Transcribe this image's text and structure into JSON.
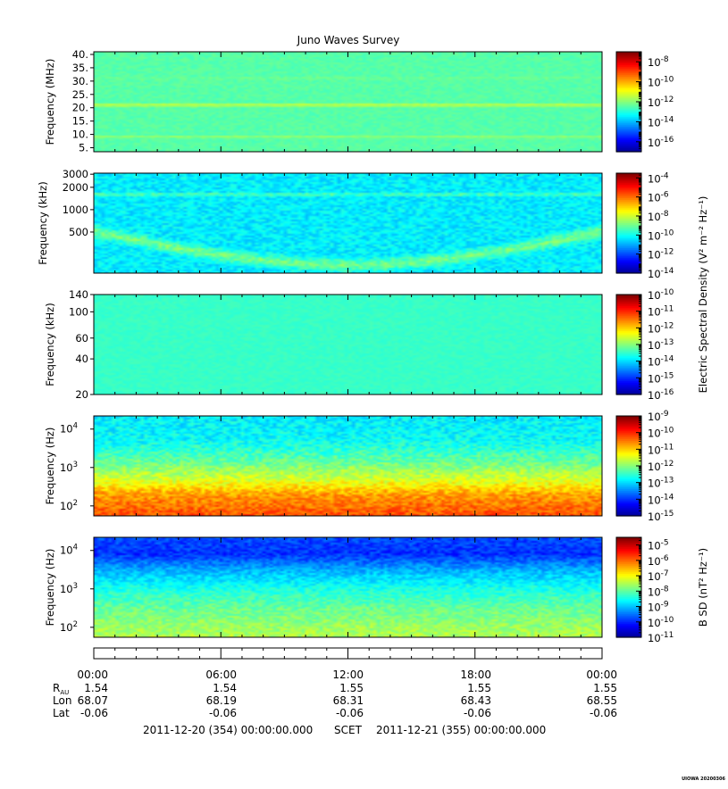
{
  "title": "Juno Waves Survey",
  "footer_id": "UIOWA 20200306",
  "colors": {
    "jet": [
      "#00008f",
      "#0000ff",
      "#0080ff",
      "#00ffff",
      "#80ff80",
      "#ffff00",
      "#ff8000",
      "#ff0000",
      "#800000"
    ]
  },
  "chart_data": [
    {
      "type": "heatmap",
      "name": "hfr-high",
      "ylabel": "Frequency (MHz)",
      "y_scale": "linear",
      "ylim": [
        3.5,
        41
      ],
      "yticks": [
        {
          "v": 5,
          "label": "5."
        },
        {
          "v": 10,
          "label": "10."
        },
        {
          "v": 15,
          "label": "15."
        },
        {
          "v": 20,
          "label": "20."
        },
        {
          "v": 25,
          "label": "25."
        },
        {
          "v": 30,
          "label": "30."
        },
        {
          "v": 35,
          "label": "35."
        },
        {
          "v": 40,
          "label": "40."
        }
      ],
      "colorbar": {
        "label": "",
        "min_exp": -17,
        "max_exp": -7,
        "ticks": [
          {
            "base": "10",
            "exp": "-8"
          },
          {
            "base": "10",
            "exp": "-10"
          },
          {
            "base": "10",
            "exp": "-12"
          },
          {
            "base": "10",
            "exp": "-14"
          },
          {
            "base": "10",
            "exp": "-16"
          }
        ]
      },
      "background_level": 0.46,
      "noise_amplitude": 0.02,
      "features": [
        {
          "kind": "band",
          "y": 21,
          "width": 0.9,
          "level": 0.58
        },
        {
          "kind": "band",
          "y": 9,
          "width": 0.6,
          "level": 0.54
        },
        {
          "kind": "band",
          "y": 31,
          "width": 0.5,
          "level": 0.5
        }
      ]
    },
    {
      "type": "heatmap",
      "name": "hfr-low",
      "ylabel": "Frequency (kHz)",
      "y_scale": "log",
      "ylim": [
        140,
        3100
      ],
      "yticks": [
        {
          "v": 500,
          "label": "500"
        },
        {
          "v": 1000,
          "label": "1000"
        },
        {
          "v": 2000,
          "label": "2000"
        },
        {
          "v": 3000,
          "label": "3000"
        }
      ],
      "colorbar": {
        "label": "",
        "min_exp": -14,
        "max_exp": -3.5,
        "ticks": [
          {
            "base": "10",
            "exp": "-4"
          },
          {
            "base": "10",
            "exp": "-6"
          },
          {
            "base": "10",
            "exp": "-8"
          },
          {
            "base": "10",
            "exp": "-10"
          },
          {
            "base": "10",
            "exp": "-12"
          },
          {
            "base": "10",
            "exp": "-14"
          }
        ]
      },
      "background_level": 0.36,
      "noise_amplitude": 0.05,
      "features": [
        {
          "kind": "band",
          "y": 1600,
          "width": 0.03,
          "level": 0.47
        },
        {
          "kind": "curve",
          "y_at_ends": 500,
          "y_at_mid": 180,
          "width": 0.12,
          "level": 0.5
        }
      ]
    },
    {
      "type": "heatmap",
      "name": "lfr-high",
      "ylabel": "Frequency (kHz)",
      "y_scale": "log",
      "ylim": [
        20,
        140
      ],
      "yticks": [
        {
          "v": 20,
          "label": "20"
        },
        {
          "v": 40,
          "label": "40"
        },
        {
          "v": 60,
          "label": "60"
        },
        {
          "v": 100,
          "label": "100"
        },
        {
          "v": 140,
          "label": "140"
        }
      ],
      "colorbar": {
        "label": "Electric Spectral Density (V² m⁻² Hz⁻¹)",
        "min_exp": -16,
        "max_exp": -10,
        "ticks": [
          {
            "base": "10",
            "exp": "-10"
          },
          {
            "base": "10",
            "exp": "-11"
          },
          {
            "base": "10",
            "exp": "-12"
          },
          {
            "base": "10",
            "exp": "-13"
          },
          {
            "base": "10",
            "exp": "-14"
          },
          {
            "base": "10",
            "exp": "-15"
          },
          {
            "base": "10",
            "exp": "-16"
          }
        ]
      },
      "background_level": 0.43,
      "noise_amplitude": 0.015,
      "features": []
    },
    {
      "type": "heatmap",
      "name": "lfr-low",
      "ylabel": "Frequency (Hz)",
      "y_scale": "log",
      "ylim": [
        55,
        22000
      ],
      "yticks": [
        {
          "v": 100,
          "label": "10",
          "exp": "2"
        },
        {
          "v": 1000,
          "label": "10",
          "exp": "3"
        },
        {
          "v": 10000,
          "label": "10",
          "exp": "4"
        }
      ],
      "colorbar": {
        "label": "",
        "min_exp": -15,
        "max_exp": -9,
        "ticks": [
          {
            "base": "10",
            "exp": "-9"
          },
          {
            "base": "10",
            "exp": "-10"
          },
          {
            "base": "10",
            "exp": "-11"
          },
          {
            "base": "10",
            "exp": "-12"
          },
          {
            "base": "10",
            "exp": "-13"
          },
          {
            "base": "10",
            "exp": "-14"
          },
          {
            "base": "10",
            "exp": "-15"
          }
        ]
      },
      "background_level": 0.42,
      "noise_amplitude": 0.06,
      "features": [
        {
          "kind": "gradient",
          "stops": [
            [
              22000,
              0.36
            ],
            [
              5000,
              0.38
            ],
            [
              1500,
              0.47
            ],
            [
              500,
              0.58
            ],
            [
              200,
              0.72
            ],
            [
              55,
              0.8
            ]
          ]
        }
      ]
    },
    {
      "type": "heatmap",
      "name": "magnetic",
      "ylabel": "Frequency (Hz)",
      "y_scale": "log",
      "ylim": [
        55,
        22000
      ],
      "yticks": [
        {
          "v": 100,
          "label": "10",
          "exp": "2"
        },
        {
          "v": 1000,
          "label": "10",
          "exp": "3"
        },
        {
          "v": 10000,
          "label": "10",
          "exp": "4"
        }
      ],
      "colorbar": {
        "label": "B SD (nT² Hz⁻¹)",
        "min_exp": -11,
        "max_exp": -4.5,
        "ticks": [
          {
            "base": "10",
            "exp": "-5"
          },
          {
            "base": "10",
            "exp": "-6"
          },
          {
            "base": "10",
            "exp": "-7"
          },
          {
            "base": "10",
            "exp": "-8"
          },
          {
            "base": "10",
            "exp": "-9"
          },
          {
            "base": "10",
            "exp": "-10"
          },
          {
            "base": "10",
            "exp": "-11"
          }
        ]
      },
      "background_level": 0.4,
      "noise_amplitude": 0.05,
      "features": [
        {
          "kind": "gradient",
          "stops": [
            [
              22000,
              0.2
            ],
            [
              8000,
              0.17
            ],
            [
              3000,
              0.3
            ],
            [
              1000,
              0.4
            ],
            [
              300,
              0.48
            ],
            [
              55,
              0.55
            ]
          ]
        }
      ]
    }
  ],
  "time_axis": {
    "labels": [
      "00:00",
      "06:00",
      "12:00",
      "18:00",
      "00:00"
    ],
    "ephemeris": [
      {
        "name": "R",
        "sub": "AU",
        "values": [
          "1.54",
          "1.54",
          "1.55",
          "1.55",
          "1.55"
        ]
      },
      {
        "name": "Lon",
        "sub": "",
        "values": [
          "68.07",
          "68.19",
          "68.31",
          "68.43",
          "68.55"
        ]
      },
      {
        "name": "Lat",
        "sub": "",
        "values": [
          "-0.06",
          "-0.06",
          "-0.06",
          "-0.06",
          "-0.06"
        ]
      }
    ],
    "start": "2011-12-20 (354) 00:00:00.000",
    "scet": "SCET",
    "end": "2011-12-21 (355) 00:00:00.000"
  }
}
